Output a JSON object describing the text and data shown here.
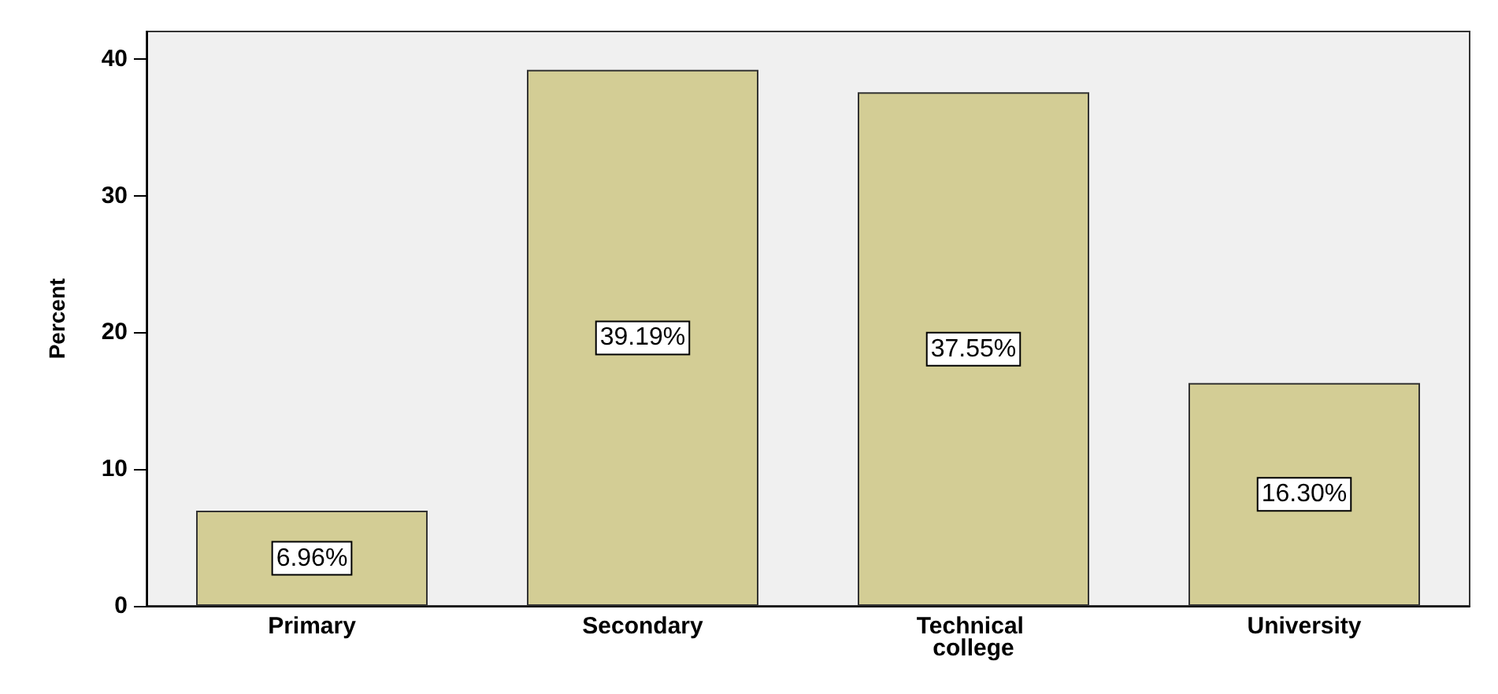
{
  "chart_data": {
    "type": "bar",
    "ylabel": "Percent",
    "categories": [
      "Primary",
      "Secondary",
      "Technical college",
      "University"
    ],
    "values": [
      6.96,
      39.19,
      37.55,
      16.3
    ],
    "value_labels": [
      "6.96%",
      "39.19%",
      "37.55%",
      "16.30%"
    ],
    "color": "#d3cd95",
    "ylim": [
      0,
      42
    ],
    "yticks": [
      0,
      10,
      20,
      30,
      40
    ],
    "grid": false
  }
}
